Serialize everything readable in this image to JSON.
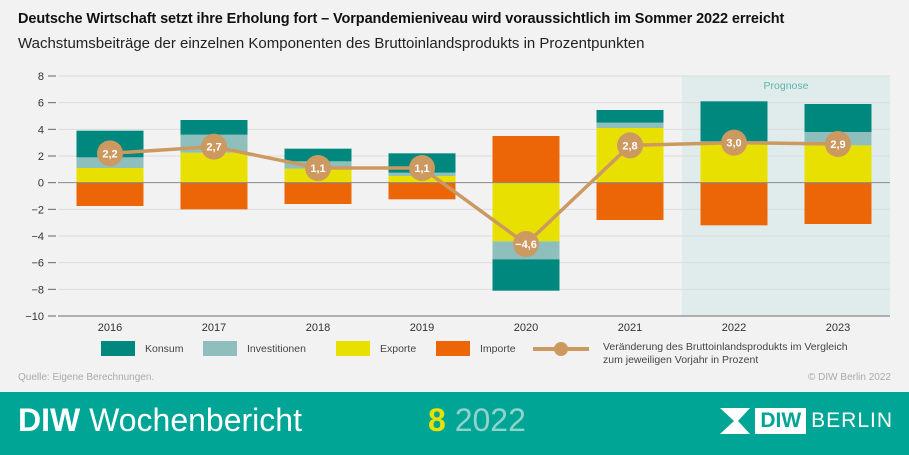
{
  "title": "Deutsche Wirtschaft setzt ihre Erholung fort – Vorpandemieniveau wird voraussichtlich im Sommer 2022 erreicht",
  "subtitle": "Wachstumsbeiträge der einzelnen Komponenten des Bruttoinlandsprodukts in Prozentpunkten",
  "chart_data": {
    "type": "bar",
    "stacked": true,
    "categories": [
      "2016",
      "2017",
      "2018",
      "2019",
      "2020",
      "2021",
      "2022",
      "2023"
    ],
    "ylim": [
      -10,
      8
    ],
    "yticks": [
      8,
      6,
      4,
      2,
      0,
      -2,
      -4,
      -6,
      -8,
      -10
    ],
    "ytick_labels": [
      "8",
      "6",
      "4",
      "2",
      "0",
      "−2",
      "−4",
      "−6",
      "−8",
      "−10"
    ],
    "grid": true,
    "forecast_label": "Prognose",
    "forecast_categories": [
      "2022",
      "2023"
    ],
    "series": [
      {
        "name": "Exporte",
        "color": "#e8e000",
        "values": [
          1.1,
          2.25,
          1.05,
          0.5,
          -4.4,
          4.1,
          2.9,
          2.8
        ]
      },
      {
        "name": "Investitionen",
        "color": "#8fbfbd",
        "values": [
          0.8,
          1.35,
          0.55,
          0.25,
          -1.35,
          0.4,
          0.2,
          1.0
        ]
      },
      {
        "name": "Konsum",
        "color": "#00877e",
        "values": [
          2.0,
          1.1,
          0.95,
          1.45,
          -2.35,
          0.95,
          3.0,
          2.1
        ]
      },
      {
        "name": "Importe",
        "color": "#ec6608",
        "values": [
          -1.75,
          -2.0,
          -1.6,
          -1.25,
          3.5,
          -2.8,
          -3.2,
          -3.1
        ]
      }
    ],
    "line": {
      "name": "Veränderung des Bruttoinlandsprodukts im Vergleich zum jeweiligen Vorjahr in Prozent",
      "color": "#cc9960",
      "values": [
        2.2,
        2.7,
        1.1,
        1.1,
        -4.6,
        2.8,
        3.0,
        2.9
      ],
      "labels": [
        "2,2",
        "2,7",
        "1,1",
        "1,1",
        "−4,6",
        "2,8",
        "3,0",
        "2,9"
      ]
    },
    "legend_placement": "bottom"
  },
  "legend": {
    "konsum": "Konsum",
    "investitionen": "Investitionen",
    "exporte": "Exporte",
    "importe": "Importe",
    "line_1": "Veränderung des Bruttoinlandsprodukts im Vergleich",
    "line_2": "zum jeweiligen Vorjahr in Prozent"
  },
  "source": "Quelle: Eigene Berechnungen.",
  "copyright": "© DIW Berlin 2022",
  "footer": {
    "brand_bold": "DIW",
    "brand_rest": " Wochenbericht",
    "issue_number": "8",
    "issue_year": "2022",
    "logo_box": "DIW",
    "logo_text": "BERLIN",
    "color": "#00a596"
  }
}
